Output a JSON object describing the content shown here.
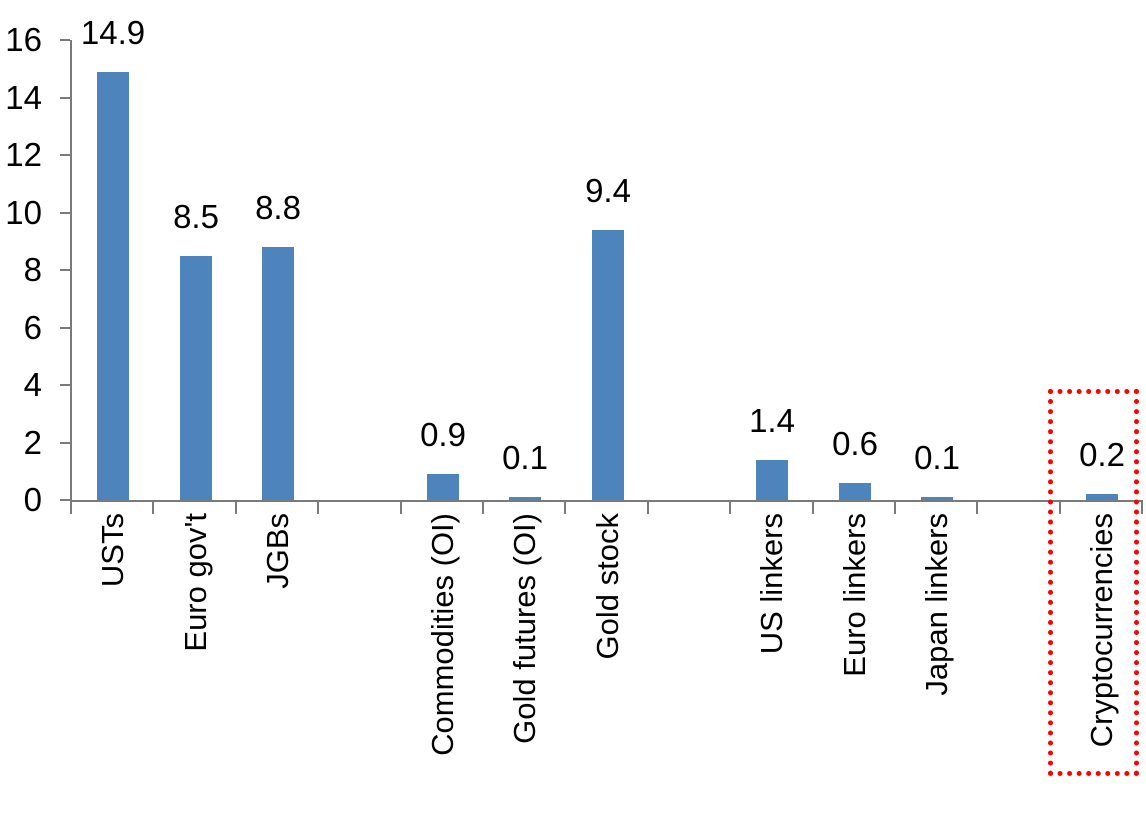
{
  "chart_data": {
    "type": "bar",
    "title": "",
    "xlabel": "",
    "ylabel": "",
    "categories": [
      "USTs",
      "Euro gov't",
      "JGBs",
      "",
      "Commodities (OI)",
      "Gold futures (OI)",
      "Gold stock",
      "",
      "US linkers",
      "Euro linkers",
      "Japan linkers",
      "",
      "Cryptocurrencies"
    ],
    "values": [
      14.9,
      8.5,
      8.8,
      null,
      0.9,
      0.1,
      9.4,
      null,
      1.4,
      0.6,
      0.1,
      null,
      0.2
    ],
    "data_labels": [
      "14.9",
      "8.5",
      "8.8",
      null,
      "0.9",
      "0.1",
      "9.4",
      null,
      "1.4",
      "0.6",
      "0.1",
      null,
      "0.2"
    ],
    "yticks": [
      0,
      2,
      4,
      6,
      8,
      10,
      12,
      14,
      16
    ],
    "ylim": [
      0,
      16
    ],
    "grid": false,
    "legend": false,
    "bar_color": "#4E84BC",
    "axis_color": "#7A7A7A",
    "text_color": "#000000",
    "highlight": {
      "target_category": "Cryptocurrencies",
      "shape": "dotted-rectangle",
      "color": "#FE0000"
    }
  }
}
